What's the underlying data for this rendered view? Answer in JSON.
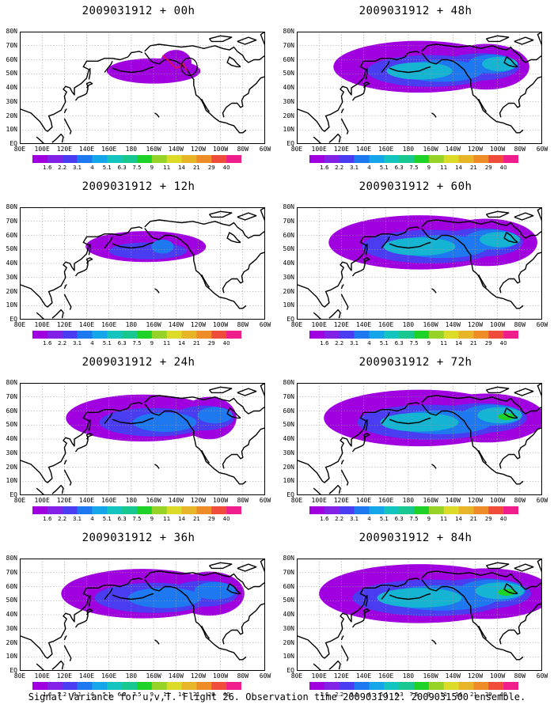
{
  "panels": [
    {
      "title": "2009031912 + 00h",
      "lead": 0
    },
    {
      "title": "2009031912 + 48h",
      "lead": 48
    },
    {
      "title": "2009031912 + 12h",
      "lead": 12
    },
    {
      "title": "2009031912 + 60h",
      "lead": 60
    },
    {
      "title": "2009031912 + 24h",
      "lead": 24
    },
    {
      "title": "2009031912 + 72h",
      "lead": 72
    },
    {
      "title": "2009031912 + 36h",
      "lead": 36
    },
    {
      "title": "2009031912 + 84h",
      "lead": 84
    }
  ],
  "axes": {
    "lat_labels": [
      "80N",
      "70N",
      "60N",
      "50N",
      "40N",
      "30N",
      "20N",
      "10N",
      "EQ"
    ],
    "lon_labels": [
      "80E",
      "100E",
      "120E",
      "140E",
      "160E",
      "180",
      "160W",
      "140W",
      "120W",
      "100W",
      "80W",
      "60W"
    ]
  },
  "colorbar": {
    "ticks": [
      "1.6",
      "2.2",
      "3.1",
      "4",
      "5.1",
      "6.3",
      "7.5",
      "9",
      "11",
      "14",
      "21",
      "29",
      "40"
    ],
    "colors": [
      "#a000e0",
      "#8222e6",
      "#4a3cf0",
      "#1e78f0",
      "#14a6e8",
      "#14c4be",
      "#18c890",
      "#1ed22a",
      "#96d228",
      "#dcdc28",
      "#e8b428",
      "#ee8c28",
      "#f04c3c",
      "#f01e8c"
    ]
  },
  "field_colors": {
    "low": "#a000e0",
    "mid": "#4a3cf0",
    "high": "#1e78f0",
    "higher": "#14b4d2",
    "peak": "#1ed22a",
    "coast": "#000000",
    "grid": "#9a9a9a",
    "flight_track": "#e0105a"
  },
  "caption": "Signal Variance for u,v,T. Flight 26. Observation time 2009031912. 2009031500 ensemble."
}
